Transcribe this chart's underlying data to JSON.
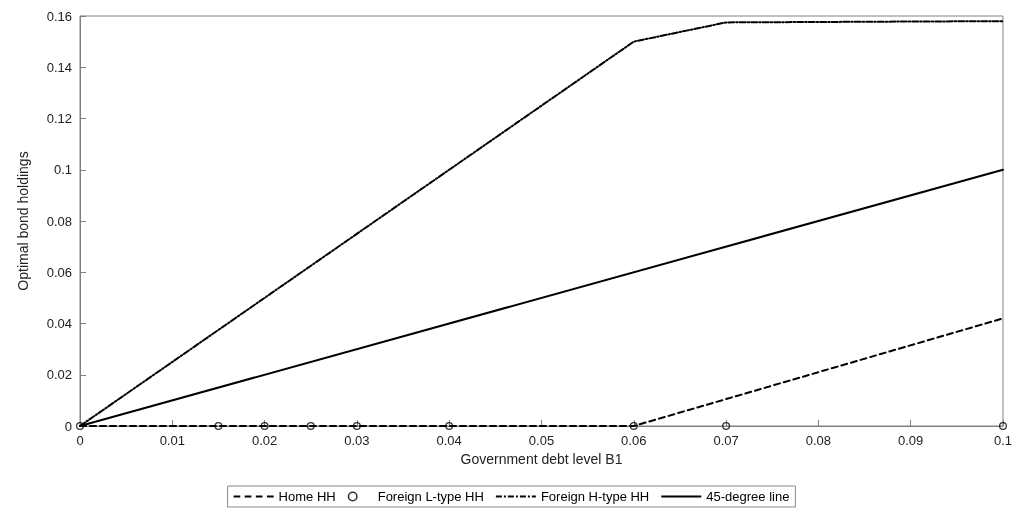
{
  "chart_data": {
    "type": "line",
    "xlabel": "Government debt level B1",
    "ylabel": "Optimal bond holdings",
    "xlim": [
      0,
      0.1
    ],
    "xticks": [
      0,
      0.01,
      0.02,
      0.03,
      0.04,
      0.05,
      0.06,
      0.07,
      0.08,
      0.09,
      0.1
    ],
    "ylim": [
      0,
      0.16
    ],
    "yticks": [
      0,
      0.02,
      0.04,
      0.06,
      0.08,
      0.1,
      0.12,
      0.14,
      0.16
    ],
    "grid": false,
    "legend": "bottom",
    "series": [
      {
        "name": "Home HH",
        "color": "#000000",
        "line_style": "dashed",
        "marker": "none",
        "x": [
          0,
          0.015,
          0.02,
          0.025,
          0.03,
          0.04,
          0.06,
          0.07,
          0.1
        ],
        "values": [
          0,
          0,
          0,
          0,
          0,
          0,
          0,
          0.0105,
          0.042
        ]
      },
      {
        "name": "Foreign L-type HH",
        "color": "#000000",
        "type": "scatter",
        "marker": "circle",
        "x": [
          0,
          0.015,
          0.02,
          0.025,
          0.03,
          0.04,
          0.06,
          0.07,
          0.1
        ],
        "values": [
          0,
          0,
          0,
          0,
          0,
          0,
          0,
          0,
          0
        ]
      },
      {
        "name": "Foreign H-type HH",
        "color": "#000000",
        "line_style": "dashdot",
        "marker": "none",
        "x": [
          0,
          0.06,
          0.07,
          0.1
        ],
        "values": [
          0,
          0.15,
          0.1575,
          0.158
        ]
      },
      {
        "name": "45-degree line",
        "color": "#000000",
        "line_style": "solid",
        "marker": "none",
        "x": [
          0,
          0.1
        ],
        "values": [
          0,
          0.1
        ]
      }
    ]
  }
}
